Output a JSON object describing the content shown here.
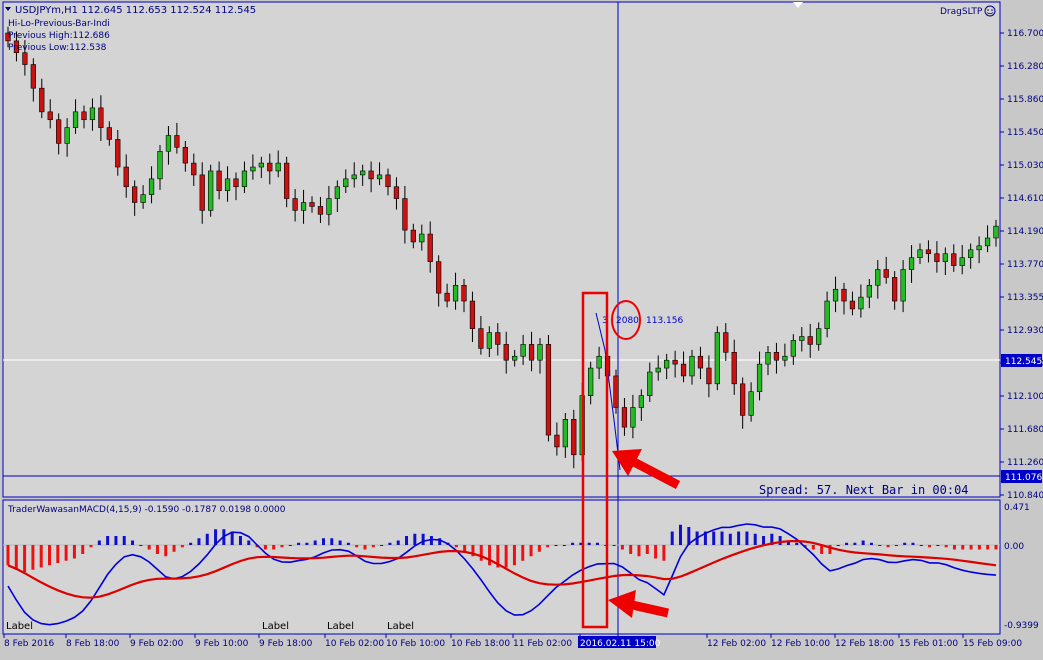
{
  "header": {
    "symbol_line": "USDJPYm,H1  112.645 112.653 112.524 112.545",
    "indicator_name": "Hi-Lo-Previous-Bar-Indi",
    "previous_high": "Previous High:112.686",
    "previous_low": "Previous  Low:112.538",
    "ea_name": "DragSLTP"
  },
  "colors": {
    "background": "#d4d4d4",
    "axis": "#0000c8",
    "bull_candle": "#22bb22",
    "bear_candle": "#cc1111",
    "macd_line": "#0000dd",
    "signal_line": "#dd0000",
    "annotation_red": "#ee0000"
  },
  "price_axis": {
    "ticks": [
      "116.700",
      "116.280",
      "115.860",
      "115.450",
      "115.030",
      "114.610",
      "114.190",
      "113.770",
      "113.355",
      "112.930",
      "112.520",
      "112.100",
      "111.680",
      "111.260",
      "110.840"
    ],
    "current_price": "112.545",
    "lower_tag": "111.076"
  },
  "time_axis": {
    "labels": [
      "8 Feb 2016",
      "8 Feb 18:00",
      "9 Feb 02:00",
      "9 Feb 10:00",
      "9 Feb 18:00",
      "10 Feb 02:00",
      "10 Feb 10:00",
      "10 Feb 18:00",
      "11 Feb 02:00",
      "2016.02.11 15:00",
      "12 Feb 02:00",
      "12 Feb 10:00",
      "12 Feb 18:00",
      "15 Feb 01:00",
      "15 Feb 09:00"
    ]
  },
  "status": {
    "spread_text": "Spread: 57. Next Bar in 00:04"
  },
  "crosshair": {
    "bar_index": "3",
    "bar_value": "2080",
    "price": "113.156"
  },
  "macd": {
    "title": "TraderWawasanMACD(4,15,9) -0.1590 -0.1787 0.0198 0.0000",
    "ticks": [
      "0.471",
      "0.00",
      "-0.9399"
    ]
  },
  "labels": [
    "Label",
    "Label",
    "Label",
    "Label"
  ],
  "chart_data": {
    "type": "candlestick",
    "symbol": "USDJPYm",
    "timeframe": "H1",
    "ylim": [
      110.84,
      116.7
    ],
    "candles": [
      [
        116.7,
        116.6
      ],
      [
        116.6,
        116.45
      ],
      [
        116.45,
        116.3
      ],
      [
        116.3,
        116.0
      ],
      [
        116.0,
        115.7
      ],
      [
        115.7,
        115.6
      ],
      [
        115.6,
        115.3
      ],
      [
        115.3,
        115.5
      ],
      [
        115.5,
        115.7
      ],
      [
        115.7,
        115.6
      ],
      [
        115.6,
        115.75
      ],
      [
        115.75,
        115.5
      ],
      [
        115.5,
        115.35
      ],
      [
        115.35,
        115.0
      ],
      [
        115.0,
        114.75
      ],
      [
        114.75,
        114.55
      ],
      [
        114.55,
        114.65
      ],
      [
        114.65,
        114.85
      ],
      [
        114.85,
        115.2
      ],
      [
        115.2,
        115.4
      ],
      [
        115.4,
        115.25
      ],
      [
        115.25,
        115.05
      ],
      [
        115.05,
        114.9
      ],
      [
        114.9,
        114.45
      ],
      [
        114.45,
        114.95
      ],
      [
        114.95,
        114.7
      ],
      [
        114.7,
        114.85
      ],
      [
        114.85,
        114.75
      ],
      [
        114.75,
        114.95
      ],
      [
        114.95,
        115.0
      ],
      [
        115.0,
        115.05
      ],
      [
        115.05,
        114.95
      ],
      [
        114.95,
        115.05
      ],
      [
        115.05,
        114.6
      ],
      [
        114.6,
        114.45
      ],
      [
        114.45,
        114.55
      ],
      [
        114.55,
        114.5
      ],
      [
        114.5,
        114.4
      ],
      [
        114.4,
        114.6
      ],
      [
        114.6,
        114.75
      ],
      [
        114.75,
        114.85
      ],
      [
        114.85,
        114.9
      ],
      [
        114.9,
        114.95
      ],
      [
        114.95,
        114.85
      ],
      [
        114.85,
        114.9
      ],
      [
        114.9,
        114.75
      ],
      [
        114.75,
        114.6
      ],
      [
        114.6,
        114.2
      ],
      [
        114.2,
        114.05
      ],
      [
        114.05,
        114.15
      ],
      [
        114.15,
        113.8
      ],
      [
        113.8,
        113.4
      ],
      [
        113.4,
        113.3
      ],
      [
        113.3,
        113.5
      ],
      [
        113.5,
        113.3
      ],
      [
        113.3,
        112.95
      ],
      [
        112.95,
        112.7
      ],
      [
        112.7,
        112.9
      ],
      [
        112.9,
        112.75
      ],
      [
        112.75,
        112.55
      ],
      [
        112.55,
        112.6
      ],
      [
        112.6,
        112.75
      ],
      [
        112.75,
        112.55
      ],
      [
        112.55,
        112.75
      ],
      [
        112.75,
        111.6
      ],
      [
        111.6,
        111.45
      ],
      [
        111.45,
        111.8
      ],
      [
        111.8,
        111.35
      ],
      [
        111.35,
        112.1
      ],
      [
        112.1,
        112.45
      ],
      [
        112.45,
        112.6
      ],
      [
        112.6,
        112.35
      ],
      [
        112.35,
        111.95
      ],
      [
        111.95,
        111.7
      ],
      [
        111.7,
        111.95
      ],
      [
        111.95,
        112.1
      ],
      [
        112.1,
        112.4
      ],
      [
        112.4,
        112.45
      ],
      [
        112.45,
        112.55
      ],
      [
        112.55,
        112.5
      ],
      [
        112.5,
        112.35
      ],
      [
        112.35,
        112.6
      ],
      [
        112.6,
        112.45
      ],
      [
        112.45,
        112.25
      ],
      [
        112.25,
        112.9
      ],
      [
        112.9,
        112.65
      ],
      [
        112.65,
        112.25
      ],
      [
        112.25,
        111.85
      ],
      [
        111.85,
        112.15
      ],
      [
        112.15,
        112.5
      ],
      [
        112.5,
        112.65
      ],
      [
        112.65,
        112.55
      ],
      [
        112.55,
        112.6
      ],
      [
        112.6,
        112.8
      ],
      [
        112.8,
        112.85
      ],
      [
        112.85,
        112.75
      ],
      [
        112.75,
        112.95
      ],
      [
        112.95,
        113.3
      ],
      [
        113.3,
        113.45
      ],
      [
        113.45,
        113.3
      ],
      [
        113.3,
        113.2
      ],
      [
        113.2,
        113.35
      ],
      [
        113.35,
        113.5
      ],
      [
        113.5,
        113.7
      ],
      [
        113.7,
        113.6
      ],
      [
        113.6,
        113.3
      ],
      [
        113.3,
        113.7
      ],
      [
        113.7,
        113.85
      ],
      [
        113.85,
        113.95
      ],
      [
        113.95,
        113.9
      ],
      [
        113.9,
        113.8
      ],
      [
        113.8,
        113.9
      ],
      [
        113.9,
        113.75
      ],
      [
        113.75,
        113.85
      ],
      [
        113.85,
        113.95
      ],
      [
        113.95,
        114.0
      ],
      [
        114.0,
        114.1
      ],
      [
        114.1,
        114.25
      ]
    ],
    "macd_hist": [
      -0.45,
      -0.55,
      -0.6,
      -0.55,
      -0.5,
      -0.45,
      -0.4,
      -0.35,
      -0.3,
      -0.2,
      -0.05,
      0.1,
      0.2,
      0.2,
      0.2,
      0.1,
      0.0,
      -0.1,
      -0.2,
      -0.25,
      -0.15,
      -0.05,
      0.05,
      0.15,
      0.25,
      0.35,
      0.35,
      0.3,
      0.2,
      0.1,
      -0.05,
      -0.1,
      -0.1,
      -0.05,
      0.0,
      0.05,
      0.05,
      0.1,
      0.15,
      0.15,
      0.1,
      0.05,
      -0.05,
      -0.1,
      -0.05,
      0.0,
      0.05,
      0.1,
      0.2,
      0.25,
      0.25,
      0.2,
      0.15,
      0.05,
      -0.05,
      -0.15,
      -0.25,
      -0.35,
      -0.45,
      -0.5,
      -0.5,
      -0.45,
      -0.35,
      -0.25,
      -0.15,
      -0.05,
      0.0,
      0.0,
      0.05,
      0.05,
      0.05,
      0.05,
      0.0,
      0.0,
      -0.1,
      -0.2,
      -0.25,
      -0.2,
      -0.3,
      -0.35,
      0.3,
      0.45,
      0.4,
      0.3,
      0.3,
      0.3,
      0.3,
      0.25,
      0.3,
      0.3,
      0.25,
      0.2,
      0.25,
      0.2,
      0.1,
      0.05,
      -0.05,
      -0.1,
      -0.2,
      -0.2,
      0.0,
      0.05,
      0.05,
      0.1,
      0.05,
      0.0,
      -0.05,
      0.0,
      0.05,
      0.05,
      0.0,
      -0.05,
      0.0,
      -0.05,
      -0.1,
      -0.1,
      -0.1,
      -0.1,
      -0.1,
      -0.1
    ]
  }
}
